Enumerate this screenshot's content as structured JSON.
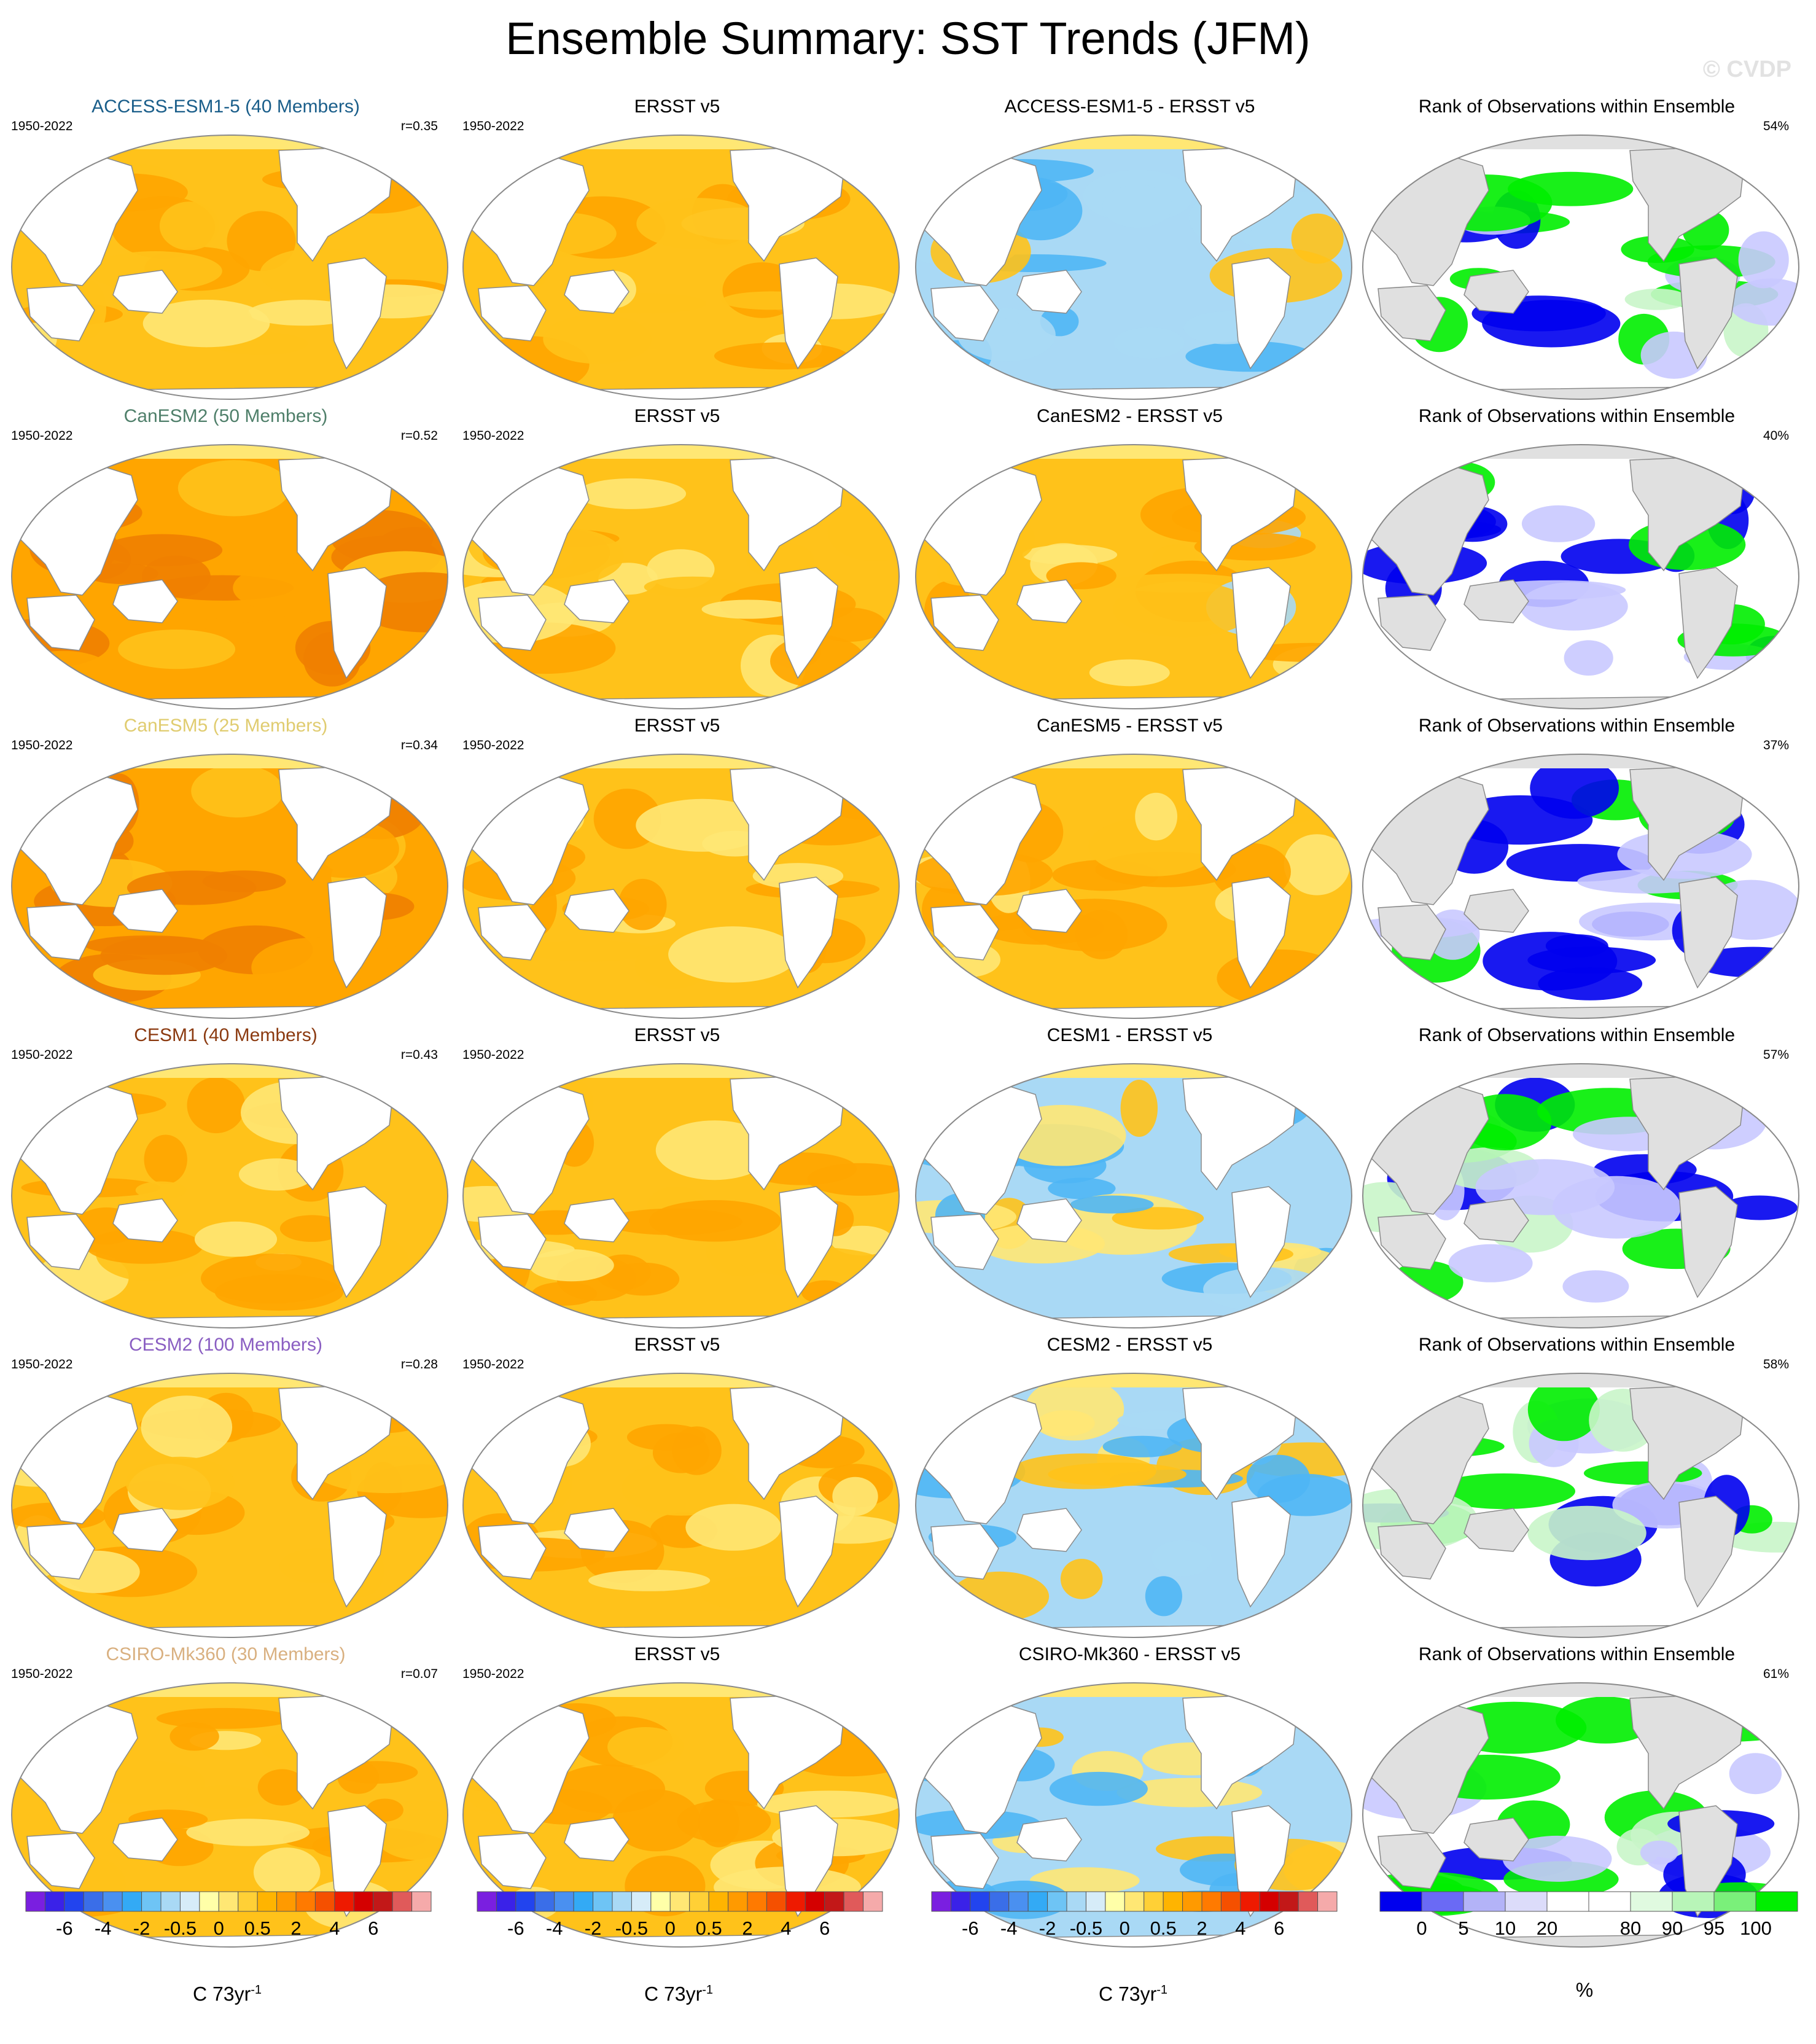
{
  "title": "Ensemble Summary: SST Trends (JFM)",
  "credit": "© CVDP",
  "colors": {
    "land_model": "#ffffff",
    "land_rank": "#e0e0e0",
    "coast": "#8a8a8a",
    "warm1": "#ffe774",
    "warm2": "#ffc21a",
    "warm3": "#ffa500",
    "warm4": "#f08000",
    "cool1": "#a9d9f5",
    "cool2": "#4fb6f5",
    "rank_low": "#0000ee",
    "rank_low2": "#c9c9ff",
    "rank_high": "#00ee00",
    "rank_high2": "#c9f5c9"
  },
  "common": {
    "period": "1950-2022",
    "obs_title": "ERSST v5",
    "rank_title": "Rank of Observations within Ensemble"
  },
  "rows": [
    {
      "model_title": "ACCESS-ESM1-5 (40 Members)",
      "title_color": "#1a5e8a",
      "r": "r=0.35",
      "diff_title": "ACCESS-ESM1-5 - ERSST v5",
      "rank_pct": "54%",
      "model_tone": "mixed",
      "diff_tone": "cool",
      "rank_tone": "mixed"
    },
    {
      "model_title": "CanESM2 (50 Members)",
      "title_color": "#4f7f6a",
      "r": "r=0.52",
      "diff_title": "CanESM2 - ERSST v5",
      "rank_pct": "40%",
      "model_tone": "warm",
      "diff_tone": "warm",
      "rank_tone": "low"
    },
    {
      "model_title": "CanESM5 (25 Members)",
      "title_color": "#e0cc70",
      "r": "r=0.34",
      "diff_title": "CanESM5 - ERSST v5",
      "rank_pct": "37%",
      "model_tone": "warm",
      "diff_tone": "warm",
      "rank_tone": "low"
    },
    {
      "model_title": "CESM1 (40 Members)",
      "title_color": "#8b3a10",
      "r": "r=0.43",
      "diff_title": "CESM1 - ERSST v5",
      "rank_pct": "57%",
      "model_tone": "mixed",
      "diff_tone": "cool",
      "rank_tone": "mixed"
    },
    {
      "model_title": "CESM2 (100 Members)",
      "title_color": "#8a5ec2",
      "r": "r=0.28",
      "diff_title": "CESM2 - ERSST v5",
      "rank_pct": "58%",
      "model_tone": "mixed",
      "diff_tone": "cool",
      "rank_tone": "mixed"
    },
    {
      "model_title": "CSIRO-Mk360 (30 Members)",
      "title_color": "#d9b080",
      "r": "r=0.07",
      "diff_title": "CSIRO-Mk360 - ERSST v5",
      "rank_pct": "61%",
      "model_tone": "mixed",
      "diff_tone": "cool",
      "rank_tone": "high"
    }
  ],
  "colorbars": {
    "trend": {
      "colors": [
        "#7a1fe0",
        "#3a22e8",
        "#2244ee",
        "#3a6ee8",
        "#4a90f0",
        "#33aaf5",
        "#6ec4f5",
        "#a9d9f5",
        "#d6ecf8",
        "#ffffa8",
        "#ffe774",
        "#ffd036",
        "#ffb400",
        "#ff9a00",
        "#ff7a00",
        "#f55000",
        "#ee1a00",
        "#d40000",
        "#c21818",
        "#e05a5a",
        "#f5aaaa"
      ],
      "labels": [
        "-6",
        "-4",
        "-2",
        "-0.5",
        "0",
        "0.5",
        "2",
        "4",
        "6"
      ],
      "label_slots": [
        2,
        4,
        6,
        8,
        10,
        12,
        14,
        16,
        18
      ],
      "unit": "C 73yr",
      "unit_sup": "-1"
    },
    "rank": {
      "colors": [
        "#0000ee",
        "#6a6af5",
        "#b3b3f7",
        "#dcdcfa",
        "#ffffff",
        "#ffffff",
        "#e0fae0",
        "#b8f5b8",
        "#7af07a",
        "#00ee00"
      ],
      "labels": [
        "0",
        "5",
        "10",
        "20",
        "80",
        "90",
        "95",
        "100"
      ],
      "label_slots": [
        1,
        2,
        3,
        4,
        6,
        7,
        8,
        9
      ],
      "unit": "%"
    }
  }
}
